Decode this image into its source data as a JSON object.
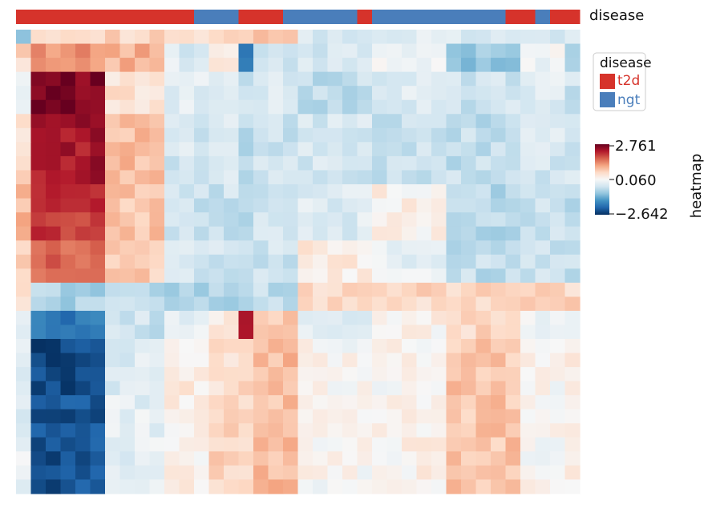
{
  "chart_data": {
    "type": "heatmap",
    "title": "",
    "colormap": "RdBu_r",
    "annotation_bar": {
      "label": "disease",
      "segments": [
        {
          "group": "t2d",
          "count": 12
        },
        {
          "group": "ngt",
          "count": 3
        },
        {
          "group": "t2d",
          "count": 3
        },
        {
          "group": "ngt",
          "count": 5
        },
        {
          "group": "t2d",
          "count": 1
        },
        {
          "group": "ngt",
          "count": 9
        },
        {
          "group": "t2d",
          "count": 2
        },
        {
          "group": "ngt",
          "count": 1
        },
        {
          "group": "t2d",
          "count": 2
        }
      ]
    },
    "legend": {
      "title": "disease",
      "placement": "right",
      "entries": [
        {
          "name": "t2d",
          "color": "#d6332b"
        },
        {
          "name": "ngt",
          "color": "#4a7ebb"
        }
      ]
    },
    "colorbar": {
      "label": "heatmap",
      "ticks": [
        "2.761",
        "0.060",
        "−2.642"
      ],
      "min": -2.642,
      "max": 2.761
    },
    "n_rows": 33,
    "n_cols": 38,
    "column_blocks": [
      {
        "name": "A",
        "cols": [
          0,
          1
        ]
      },
      {
        "name": "B",
        "cols": [
          1,
          6
        ]
      },
      {
        "name": "C",
        "cols": [
          6,
          10
        ]
      },
      {
        "name": "D",
        "cols": [
          10,
          13
        ]
      },
      {
        "name": "E",
        "cols": [
          13,
          15
        ]
      },
      {
        "name": "F",
        "cols": [
          15,
          16
        ]
      },
      {
        "name": "G",
        "cols": [
          16,
          19
        ]
      },
      {
        "name": "H",
        "cols": [
          19,
          24
        ]
      },
      {
        "name": "I",
        "cols": [
          24,
          29
        ]
      },
      {
        "name": "J",
        "cols": [
          29,
          34
        ]
      },
      {
        "name": "K",
        "cols": [
          34,
          37
        ]
      },
      {
        "name": "L",
        "cols": [
          37,
          38
        ]
      }
    ],
    "row_blocks": [
      {
        "name": "r1",
        "rows": [
          0,
          1
        ],
        "vals": {
          "A": -0.8,
          "B": 0.7,
          "C": 0.6,
          "D": 0.4,
          "E": 0.7,
          "F": 0.6,
          "G": 0.7,
          "H": -0.4,
          "I": -0.3,
          "J": -0.4,
          "K": -0.4,
          "L": -0.4
        }
      },
      {
        "name": "r2",
        "rows": [
          1,
          3
        ],
        "vals": {
          "A": 0.6,
          "B": 1.3,
          "C": 1.0,
          "D": -0.3,
          "E": 0.2,
          "F": -1.7,
          "G": -0.5,
          "H": -0.4,
          "I": -0.1,
          "J": -1.0,
          "K": 0.0,
          "L": -0.6
        }
      },
      {
        "name": "r3",
        "rows": [
          3,
          6
        ],
        "vals": {
          "A": -0.1,
          "B": 2.6,
          "C": 0.5,
          "D": -0.3,
          "E": -0.3,
          "F": -0.5,
          "G": -0.4,
          "H": -0.6,
          "I": -0.3,
          "J": -0.5,
          "K": -0.3,
          "L": -0.5
        }
      },
      {
        "name": "r4",
        "rows": [
          6,
          11
        ],
        "vals": {
          "A": 0.5,
          "B": 2.3,
          "C": 0.9,
          "D": -0.4,
          "E": -0.2,
          "F": -0.6,
          "G": -0.5,
          "H": -0.4,
          "I": -0.5,
          "J": -0.6,
          "K": -0.4,
          "L": -0.5
        }
      },
      {
        "name": "r5",
        "rows": [
          11,
          15
        ],
        "vals": {
          "A": 0.9,
          "B": 2.0,
          "C": 0.8,
          "D": -0.5,
          "E": -0.5,
          "F": -0.7,
          "G": -0.5,
          "H": -0.3,
          "I": 0.2,
          "J": -0.7,
          "K": -0.5,
          "L": -0.6
        }
      },
      {
        "name": "r6",
        "rows": [
          15,
          18
        ],
        "vals": {
          "A": 0.6,
          "B": 1.6,
          "C": 0.7,
          "D": -0.4,
          "E": -0.5,
          "F": -0.7,
          "G": -0.5,
          "H": 0.3,
          "I": -0.2,
          "J": -0.6,
          "K": -0.5,
          "L": -0.6
        }
      },
      {
        "name": "r7",
        "rows": [
          18,
          20
        ],
        "vals": {
          "A": 0.5,
          "B": -0.8,
          "C": -0.7,
          "D": -0.8,
          "E": -0.7,
          "F": -0.9,
          "G": -0.6,
          "H": 0.6,
          "I": 0.6,
          "J": 0.6,
          "K": 0.6,
          "L": 0.6
        }
      },
      {
        "name": "r8",
        "rows": [
          20,
          22
        ],
        "vals": {
          "A": -0.3,
          "B": -1.9,
          "C": -0.5,
          "D": -0.2,
          "E": 0.4,
          "F": 2.2,
          "G": 0.7,
          "H": -0.3,
          "I": 0.2,
          "J": 0.6,
          "K": -0.1,
          "L": -0.3
        }
      },
      {
        "name": "r9",
        "rows": [
          22,
          26
        ],
        "vals": {
          "A": -0.2,
          "B": -2.4,
          "C": -0.3,
          "D": 0.3,
          "E": 0.5,
          "F": 0.6,
          "G": 0.9,
          "H": 0.1,
          "I": 0.1,
          "J": 0.8,
          "K": 0.1,
          "L": 0.2
        }
      },
      {
        "name": "r10",
        "rows": [
          26,
          33
        ],
        "vals": {
          "A": -0.2,
          "B": -2.3,
          "C": -0.2,
          "D": 0.2,
          "E": 0.7,
          "F": 0.5,
          "G": 0.9,
          "H": 0.1,
          "I": 0.2,
          "J": 0.8,
          "K": 0.1,
          "L": 0.3
        }
      }
    ],
    "variation_amplitude": 0.25
  }
}
